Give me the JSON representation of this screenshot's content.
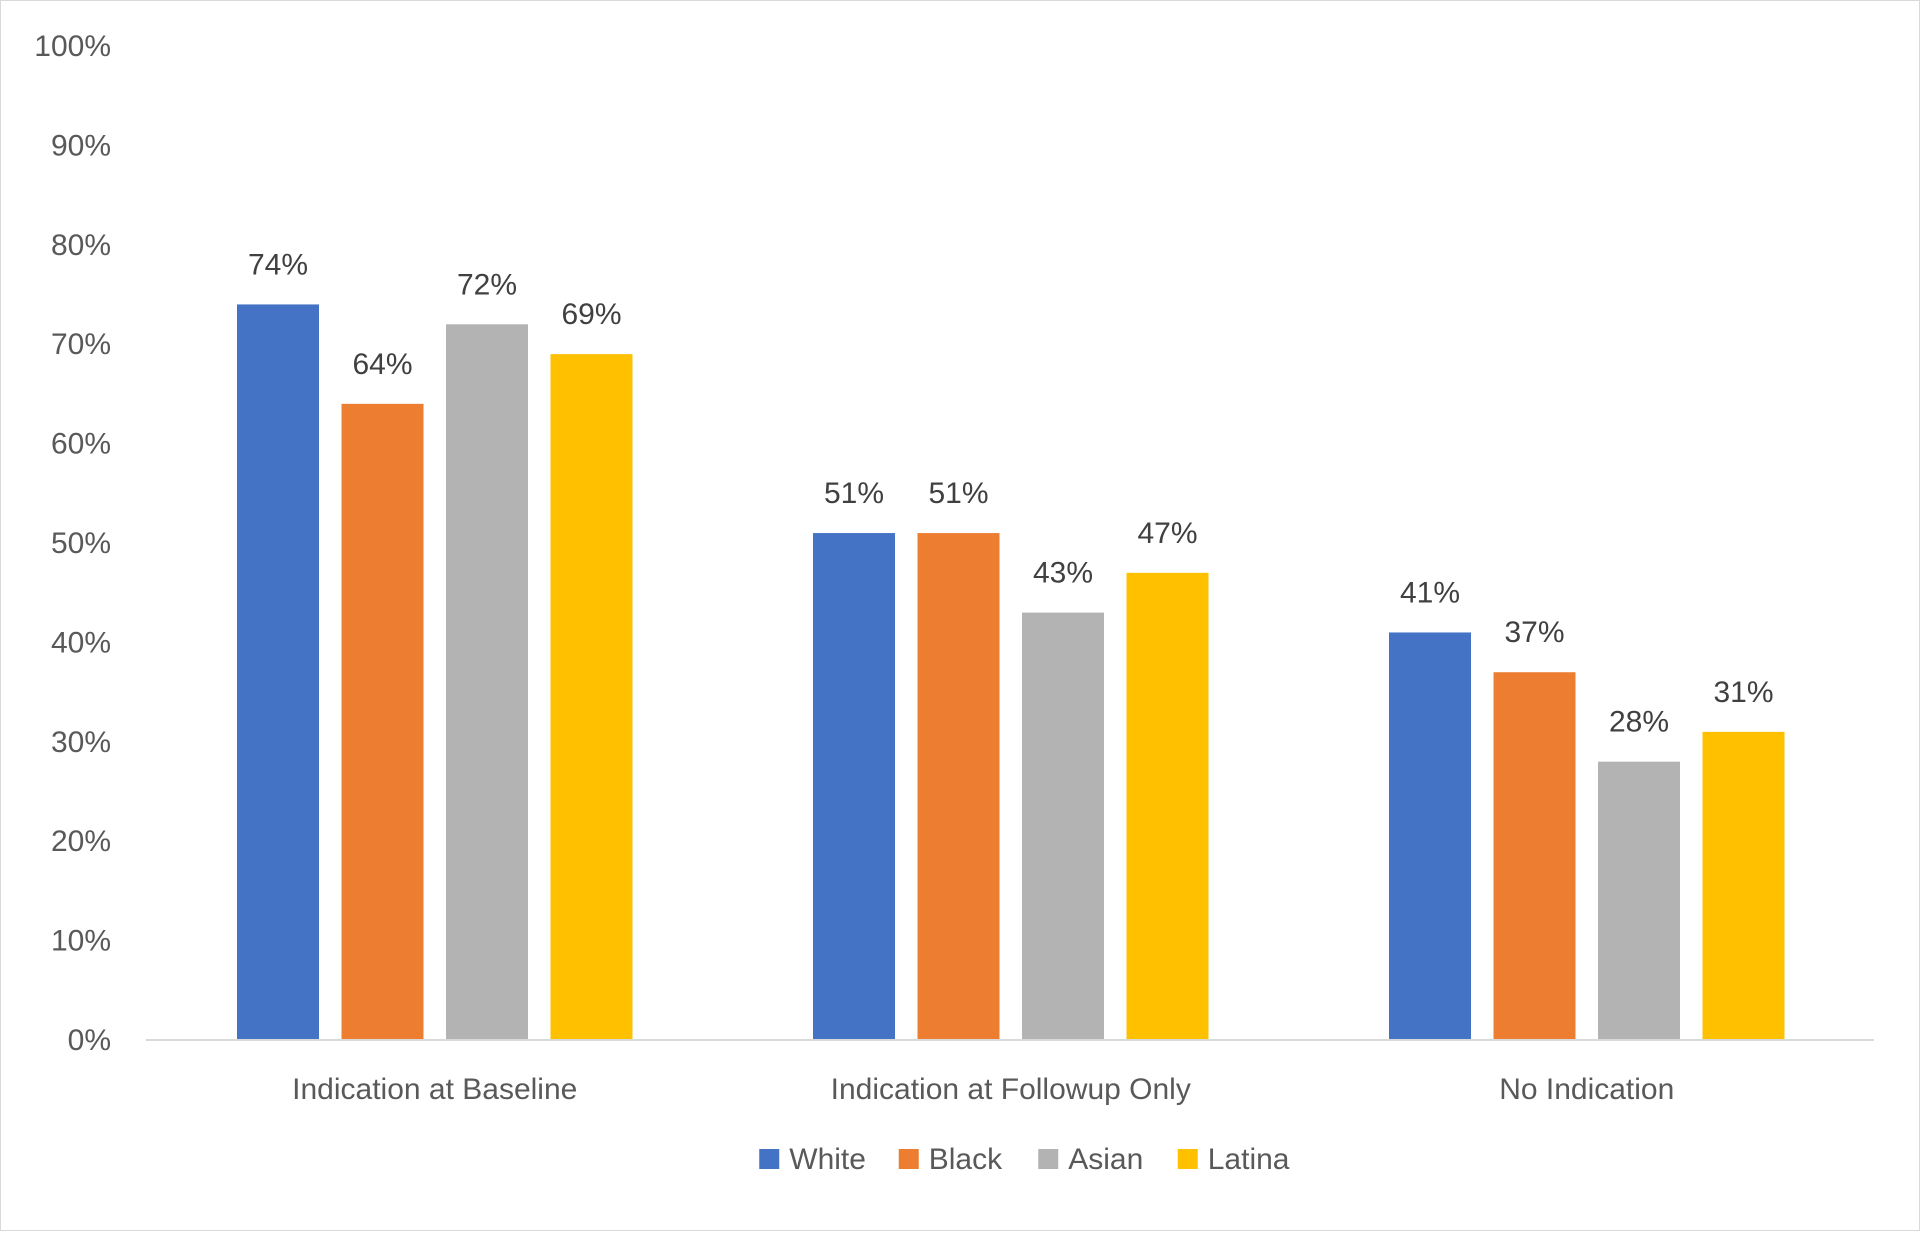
{
  "chart_data": {
    "type": "bar",
    "title": "",
    "xlabel": "",
    "ylabel": "",
    "ylim": [
      0,
      100
    ],
    "ytick_step": 10,
    "ytick_suffix": "%",
    "grid": false,
    "legend_position": "bottom",
    "categories": [
      "Indication at Baseline",
      "Indication at Followup Only",
      "No Indication"
    ],
    "series": [
      {
        "name": "White",
        "color": "#4472C4",
        "values": [
          74,
          51,
          41
        ]
      },
      {
        "name": "Black",
        "color": "#ED7D31",
        "values": [
          64,
          51,
          37
        ]
      },
      {
        "name": "Asian",
        "color": "#B3B3B3",
        "values": [
          72,
          43,
          28
        ]
      },
      {
        "name": "Latina",
        "color": "#FFC000",
        "values": [
          69,
          47,
          31
        ]
      }
    ],
    "data_labels": [
      [
        "74%",
        "51%",
        "41%"
      ],
      [
        "64%",
        "51%",
        "37%"
      ],
      [
        "72%",
        "43%",
        "28%"
      ],
      [
        "69%",
        "47%",
        "31%"
      ]
    ]
  }
}
